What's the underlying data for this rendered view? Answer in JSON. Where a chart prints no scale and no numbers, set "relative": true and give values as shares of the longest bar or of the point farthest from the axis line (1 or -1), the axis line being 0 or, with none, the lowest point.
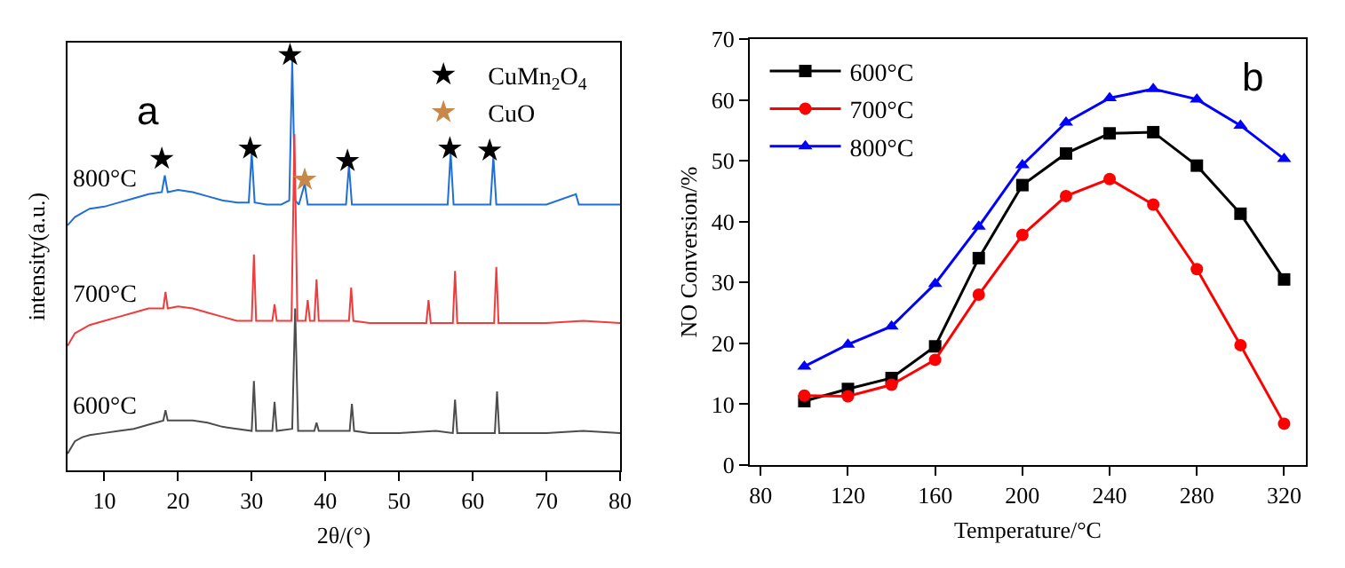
{
  "chart_data": [
    {
      "type": "line",
      "relative": true,
      "xlabel": "2θ/(°)",
      "ylabel": "intensity(a.u.)",
      "xlim": [
        5,
        80
      ],
      "xticks": [
        10,
        20,
        30,
        40,
        50,
        60,
        70,
        80
      ],
      "legend": "top right",
      "grid": false,
      "annotations": [
        "a"
      ],
      "tick_labels": "x",
      "series": [
        {
          "name": "800°C",
          "color": "#1f6fd6",
          "x": [
            5,
            6,
            7,
            8,
            10,
            12,
            14,
            16,
            17.8,
            18.2,
            18.6,
            20,
            22,
            24,
            26,
            28,
            29.6,
            30,
            30.4,
            32,
            34,
            35.1,
            35.5,
            35.9,
            36.4,
            37.2,
            37.6,
            40,
            42.8,
            43.2,
            43.6,
            46,
            50,
            54,
            56.6,
            57,
            57.4,
            60,
            62.4,
            62.8,
            63.2,
            66,
            70,
            74,
            74.4,
            76,
            78,
            80
          ],
          "values": [
            0.59,
            0.61,
            0.62,
            0.63,
            0.635,
            0.645,
            0.655,
            0.665,
            0.67,
            0.71,
            0.67,
            0.675,
            0.67,
            0.66,
            0.65,
            0.645,
            0.645,
            0.765,
            0.645,
            0.64,
            0.64,
            0.65,
            0.985,
            0.65,
            0.64,
            0.69,
            0.64,
            0.64,
            0.64,
            0.735,
            0.64,
            0.64,
            0.64,
            0.64,
            0.64,
            0.765,
            0.64,
            0.64,
            0.64,
            0.755,
            0.64,
            0.64,
            0.64,
            0.665,
            0.64,
            0.64,
            0.64,
            0.64
          ]
        },
        {
          "name": "700°C",
          "color": "#f03c3c",
          "x": [
            5,
            6,
            7,
            8,
            10,
            12,
            14,
            16,
            18,
            18.3,
            18.6,
            20,
            22,
            24,
            26,
            28,
            30,
            30.3,
            30.6,
            32.8,
            33.1,
            33.4,
            35.4,
            35.8,
            36.2,
            37.3,
            37.6,
            37.9,
            38.5,
            38.8,
            39.1,
            43.2,
            43.5,
            43.8,
            46,
            50,
            53.7,
            54,
            54.3,
            57.3,
            57.6,
            57.9,
            60,
            62.9,
            63.2,
            63.5,
            66,
            70,
            75,
            80
          ],
          "values": [
            0.3,
            0.33,
            0.34,
            0.35,
            0.36,
            0.37,
            0.38,
            0.39,
            0.39,
            0.43,
            0.39,
            0.395,
            0.39,
            0.38,
            0.37,
            0.36,
            0.36,
            0.52,
            0.36,
            0.36,
            0.4,
            0.36,
            0.36,
            0.81,
            0.36,
            0.36,
            0.41,
            0.36,
            0.36,
            0.46,
            0.36,
            0.36,
            0.44,
            0.36,
            0.355,
            0.355,
            0.355,
            0.41,
            0.355,
            0.355,
            0.48,
            0.355,
            0.355,
            0.355,
            0.49,
            0.355,
            0.355,
            0.355,
            0.36,
            0.355
          ]
        },
        {
          "name": "600°C",
          "color": "#4d4d4d",
          "x": [
            5,
            6,
            7,
            8,
            10,
            12,
            14,
            16,
            18,
            18.3,
            18.6,
            20,
            22,
            24,
            26,
            28,
            30,
            30.3,
            30.6,
            32.8,
            33.1,
            33.4,
            35.5,
            35.9,
            36.3,
            38.5,
            38.8,
            39.1,
            43.3,
            43.6,
            43.9,
            46,
            50,
            55,
            57.3,
            57.6,
            57.9,
            60,
            63,
            63.3,
            63.6,
            66,
            70,
            75,
            80
          ],
          "values": [
            0.04,
            0.07,
            0.08,
            0.085,
            0.09,
            0.095,
            0.1,
            0.11,
            0.12,
            0.145,
            0.12,
            0.12,
            0.12,
            0.115,
            0.105,
            0.1,
            0.095,
            0.215,
            0.095,
            0.095,
            0.165,
            0.095,
            0.1,
            0.39,
            0.095,
            0.095,
            0.115,
            0.095,
            0.095,
            0.16,
            0.095,
            0.09,
            0.09,
            0.095,
            0.09,
            0.17,
            0.09,
            0.09,
            0.09,
            0.19,
            0.09,
            0.09,
            0.09,
            0.095,
            0.09
          ]
        },
        {
          "name": "CuMn$_{2}$O$_{4}$",
          "type": "scatter",
          "marker": "star",
          "color": "#000000",
          "x": [
            17.8,
            29.8,
            35.2,
            43,
            56.9,
            62.3
          ],
          "values": [
            0.75,
            0.775,
            1.0,
            0.745,
            0.775,
            0.77
          ]
        },
        {
          "name": "CuO",
          "type": "scatter",
          "marker": "star",
          "color": "#c8884a",
          "x": [
            37.2
          ],
          "values": [
            0.7
          ]
        }
      ]
    },
    {
      "type": "line",
      "xlabel": "Temperature/°C",
      "ylabel": "NO Conversion/%",
      "x": [
        100,
        120,
        140,
        160,
        180,
        200,
        220,
        240,
        260,
        280,
        300,
        320
      ],
      "xlim": [
        75,
        330
      ],
      "xticks": [
        80,
        120,
        160,
        200,
        240,
        280,
        320
      ],
      "ylim": [
        0,
        70
      ],
      "yticks": [
        0,
        10,
        20,
        30,
        40,
        50,
        60,
        70
      ],
      "legend": "top left",
      "grid": false,
      "annotations": [
        "b"
      ],
      "series": [
        {
          "name": "600°C",
          "color": "#000000",
          "marker": "square",
          "values": [
            10.5,
            12.5,
            14.3,
            19.5,
            34,
            46,
            51.2,
            54.5,
            54.7,
            49.2,
            41.3,
            30.5
          ]
        },
        {
          "name": "700°C",
          "color": "#ff0000",
          "marker": "circle",
          "values": [
            11.4,
            11.3,
            13.2,
            17.3,
            28,
            37.8,
            44.2,
            47,
            42.8,
            32.2,
            19.7,
            6.8
          ]
        },
        {
          "name": "800°C",
          "color": "#0000ff",
          "marker": "triangle",
          "values": [
            16.2,
            19.8,
            22.8,
            29.8,
            39.2,
            49.3,
            56.3,
            60.3,
            61.8,
            60.1,
            55.8,
            50.3
          ]
        }
      ]
    }
  ]
}
